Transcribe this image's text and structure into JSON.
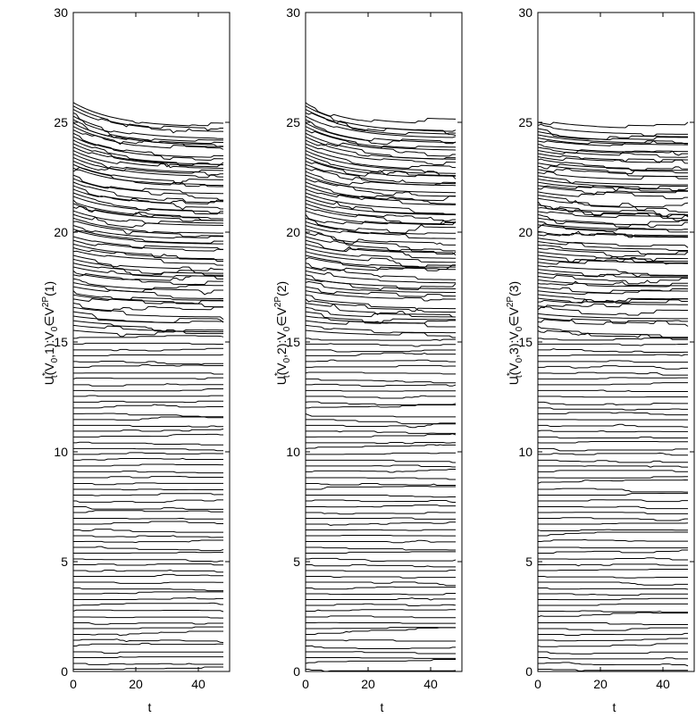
{
  "chart_data": [
    {
      "type": "line",
      "title": "",
      "xlabel": "t",
      "ylabel_main": "U",
      "ylabel_sup": "*",
      "ylabel_sub": "t",
      "ylabel_mid": "(V",
      "ylabel_sub2": "0",
      "ylabel_rest": ",1):V",
      "ylabel_sub3": "0",
      "ylabel_in": "∈V",
      "ylabel_sup2": "2P",
      "ylabel_end": "(1)",
      "xlim": [
        0,
        50
      ],
      "ylim": [
        0,
        30
      ],
      "xticks": [
        "0",
        "20",
        "40"
      ],
      "yticks": [
        "0",
        "5",
        "10",
        "15",
        "20",
        "25",
        "30"
      ],
      "n_series": 120,
      "series_pattern": "120 near-horizontal trajectories; lower group y≈0.1–15.2 step ~0.3, upper group starts 15.3–25.9 and converges toward 24.8 at the top",
      "top_start": 25.9,
      "top_end": 24.8,
      "line_color": "#000000"
    },
    {
      "type": "line",
      "title": "",
      "xlabel": "t",
      "ylabel_main": "U",
      "ylabel_sup": "*",
      "ylabel_sub": "t",
      "ylabel_mid": "(V",
      "ylabel_sub2": "0",
      "ylabel_rest": ",2):V",
      "ylabel_sub3": "0",
      "ylabel_in": "∈V",
      "ylabel_sup2": "2P",
      "ylabel_end": "(2)",
      "xlim": [
        0,
        50
      ],
      "ylim": [
        0,
        30
      ],
      "xticks": [
        "0",
        "20",
        "40"
      ],
      "yticks": [
        "0",
        "5",
        "10",
        "15",
        "20",
        "25",
        "30"
      ],
      "n_series": 120,
      "top_start": 25.9,
      "top_end": 24.8,
      "line_color": "#000000"
    },
    {
      "type": "line",
      "title": "",
      "xlabel": "t",
      "ylabel_main": "U",
      "ylabel_sup": "*",
      "ylabel_sub": "t",
      "ylabel_mid": "(V",
      "ylabel_sub2": "0",
      "ylabel_rest": ",3):V",
      "ylabel_sub3": "0",
      "ylabel_in": "∈V",
      "ylabel_sup2": "2P",
      "ylabel_end": "(3)",
      "xlim": [
        0,
        50
      ],
      "ylim": [
        0,
        30
      ],
      "xticks": [
        "0",
        "20",
        "40"
      ],
      "yticks": [
        "0",
        "5",
        "10",
        "15",
        "20",
        "25",
        "30"
      ],
      "n_series": 120,
      "top_start": 25.0,
      "top_end": 24.6,
      "line_color": "#000000"
    }
  ]
}
